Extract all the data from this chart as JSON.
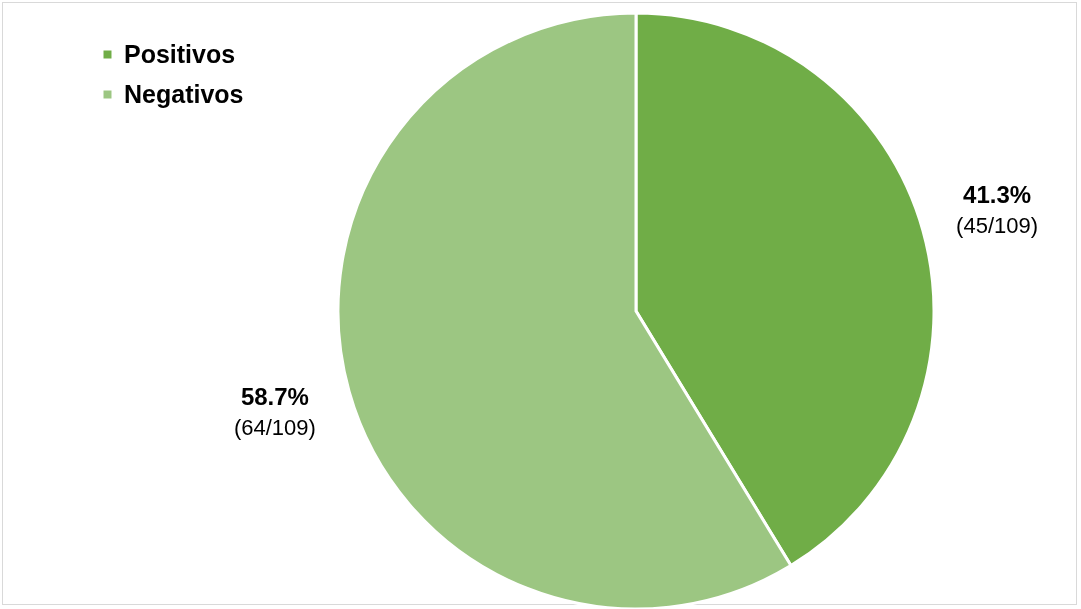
{
  "chart_data": {
    "type": "pie",
    "categories": [
      "Positivos",
      "Negativos"
    ],
    "values": [
      41.3,
      58.7
    ],
    "colors": [
      "#70ad47",
      "#9cc682"
    ],
    "value_labels": [
      "41.3%\n(45/109)",
      "58.7%\n(64/109)"
    ],
    "legend": "top left"
  }
}
